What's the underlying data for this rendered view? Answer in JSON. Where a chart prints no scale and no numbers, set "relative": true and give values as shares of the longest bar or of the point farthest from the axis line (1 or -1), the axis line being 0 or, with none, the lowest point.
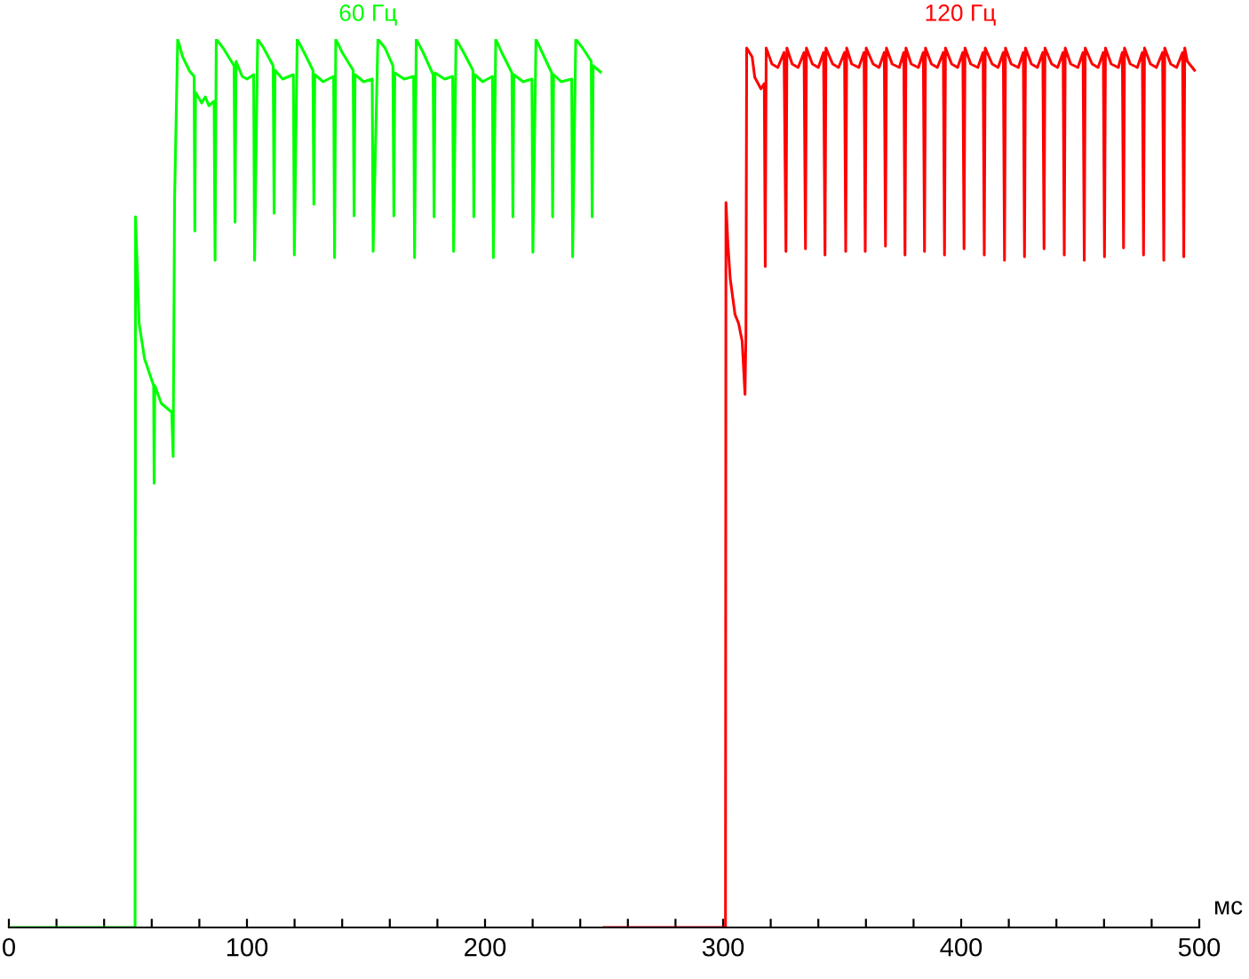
{
  "chart_data": {
    "type": "line",
    "relative": true,
    "xlabel": "мс",
    "xlim": [
      0,
      500
    ],
    "xticks": [
      0,
      {
        "value": 20,
        "label": null
      },
      {
        "value": 40,
        "label": null
      },
      {
        "value": 60,
        "label": null
      },
      {
        "value": 80,
        "label": null
      },
      100,
      {
        "value": 120,
        "label": null
      },
      {
        "value": 140,
        "label": null
      },
      {
        "value": 160,
        "label": null
      },
      {
        "value": 180,
        "label": null
      },
      200,
      {
        "value": 220,
        "label": null
      },
      {
        "value": 240,
        "label": null
      },
      {
        "value": 260,
        "label": null
      },
      {
        "value": 280,
        "label": null
      },
      300,
      {
        "value": 320,
        "label": null
      },
      {
        "value": 340,
        "label": null
      },
      {
        "value": 360,
        "label": null
      },
      {
        "value": 380,
        "label": null
      },
      400,
      {
        "value": 420,
        "label": null
      },
      {
        "value": 440,
        "label": null
      },
      {
        "value": 460,
        "label": null
      },
      {
        "value": 480,
        "label": null
      },
      500
    ],
    "grid": false,
    "legend": false,
    "marker": "none",
    "line_style": "solid",
    "series": [
      {
        "name": "60 Гц",
        "color": "#00ff00",
        "x": [
          0,
          53,
          53.2,
          54.7,
          57,
          60.8,
          61,
          61.3,
          64,
          68.4,
          69,
          69.6,
          70.9,
          73,
          75.9,
          77.8,
          78.1,
          78.4,
          81,
          82.5,
          84,
          86.2,
          86.6,
          87.1,
          90,
          94.6,
          95.0,
          95.4,
          98,
          100,
          102.8,
          103.2,
          104.5,
          107,
          111,
          111.4,
          111.8,
          115,
          119.5,
          119.9,
          121.1,
          124,
          127.7,
          128.1,
          128.5,
          132,
          136.4,
          136.8,
          137.3,
          140,
          144.6,
          145.0,
          145.4,
          149,
          152.6,
          153.0,
          155.0,
          158,
          161.3,
          161.7,
          162.1,
          166,
          170,
          170.4,
          171.1,
          174,
          178.2,
          178.6,
          179,
          183,
          186.4,
          186.8,
          187.8,
          191,
          194.9,
          195.3,
          195.7,
          199,
          203.1,
          203.5,
          204.5,
          207,
          211.3,
          211.7,
          212.1,
          216,
          219.7,
          220.1,
          221.4,
          224,
          228,
          228.4,
          228.8,
          232,
          236.4,
          236.8,
          238.1,
          241,
          244.6,
          245.0,
          245.4,
          248.5
        ],
        "values": [
          0,
          0,
          0.8,
          0.68,
          0.64,
          0.61,
          0.5,
          0.61,
          0.59,
          0.58,
          0.53,
          0.82,
          1.0,
          0.98,
          0.964,
          0.958,
          0.784,
          0.94,
          0.928,
          0.935,
          0.925,
          0.93,
          0.751,
          1.0,
          0.99,
          0.97,
          0.794,
          0.975,
          0.958,
          0.955,
          0.96,
          0.751,
          1.0,
          0.99,
          0.97,
          0.804,
          0.965,
          0.955,
          0.96,
          0.757,
          1.0,
          0.985,
          0.965,
          0.814,
          0.96,
          0.952,
          0.958,
          0.754,
          1.0,
          0.985,
          0.965,
          0.801,
          0.96,
          0.952,
          0.955,
          0.761,
          1.0,
          0.99,
          0.97,
          0.801,
          0.962,
          0.955,
          0.958,
          0.754,
          1.0,
          0.985,
          0.96,
          0.8,
          0.962,
          0.955,
          0.958,
          0.761,
          1.0,
          0.985,
          0.965,
          0.8,
          0.96,
          0.952,
          0.958,
          0.754,
          1.0,
          0.985,
          0.962,
          0.8,
          0.96,
          0.952,
          0.955,
          0.76,
          1.0,
          0.985,
          0.962,
          0.8,
          0.96,
          0.952,
          0.955,
          0.755,
          1.0,
          0.99,
          0.975,
          0.8,
          0.97,
          0.963
        ]
      },
      {
        "name": "120 Гц",
        "color": "#ff0000",
        "x": [
          250,
          301,
          301.2,
          302,
          303,
          305,
          306.5,
          308,
          309.2,
          309.6,
          309.9,
          312.2,
          313.3,
          315.9,
          317.3,
          317.7,
          318.1,
          320.5,
          323,
          325.6,
          326.4,
          326.8,
          329,
          331.5,
          334,
          334.6,
          335,
          337.5,
          340,
          342.2,
          342.8,
          343.2,
          346,
          348.5,
          351,
          351.5,
          351.9,
          354,
          357,
          359.2,
          359.7,
          360.1,
          363,
          365.5,
          367.7,
          368.2,
          368.6,
          371,
          374,
          375.9,
          376.4,
          376.8,
          379,
          382,
          384.1,
          384.6,
          385,
          387.5,
          390,
          392.5,
          393.0,
          393.4,
          396,
          398.5,
          400.7,
          401.2,
          401.6,
          404,
          407,
          409.2,
          409.7,
          410.1,
          413,
          415.5,
          417.7,
          418.2,
          418.6,
          421,
          424,
          426.1,
          426.6,
          427,
          429.5,
          432,
          434.3,
          434.8,
          435.2,
          438,
          440.5,
          442.8,
          443.3,
          443.7,
          446,
          449,
          451.2,
          451.7,
          452.1,
          455,
          457.5,
          459.7,
          460.2,
          460.6,
          463,
          466,
          467.7,
          468.2,
          468.6,
          471,
          474,
          476.1,
          476.6,
          477,
          479.5,
          482,
          484.6,
          485.1,
          485.5,
          488,
          490.5,
          493,
          493.5,
          493.9,
          495,
          498
        ],
        "values": [
          0,
          0,
          0.816,
          0.77,
          0.73,
          0.69,
          0.68,
          0.66,
          0.6,
          0.67,
          0.99,
          0.98,
          0.957,
          0.944,
          0.95,
          0.744,
          0.99,
          0.972,
          0.968,
          0.985,
          0.761,
          0.99,
          0.972,
          0.968,
          0.985,
          0.764,
          0.99,
          0.972,
          0.968,
          0.985,
          0.757,
          0.99,
          0.972,
          0.968,
          0.985,
          0.761,
          0.99,
          0.972,
          0.968,
          0.985,
          0.761,
          0.99,
          0.972,
          0.968,
          0.985,
          0.767,
          0.99,
          0.972,
          0.968,
          0.985,
          0.757,
          0.99,
          0.972,
          0.968,
          0.985,
          0.761,
          0.99,
          0.972,
          0.968,
          0.985,
          0.757,
          0.99,
          0.972,
          0.968,
          0.985,
          0.764,
          0.99,
          0.972,
          0.968,
          0.985,
          0.757,
          0.99,
          0.972,
          0.968,
          0.985,
          0.751,
          0.99,
          0.972,
          0.968,
          0.985,
          0.755,
          0.99,
          0.972,
          0.968,
          0.985,
          0.764,
          0.99,
          0.972,
          0.968,
          0.985,
          0.757,
          0.99,
          0.972,
          0.968,
          0.985,
          0.751,
          0.99,
          0.972,
          0.968,
          0.985,
          0.755,
          0.99,
          0.972,
          0.968,
          0.985,
          0.765,
          0.99,
          0.972,
          0.968,
          0.985,
          0.757,
          0.99,
          0.972,
          0.968,
          0.985,
          0.751,
          0.99,
          0.972,
          0.968,
          0.985,
          0.755,
          0.99,
          0.975,
          0.965
        ]
      }
    ]
  }
}
